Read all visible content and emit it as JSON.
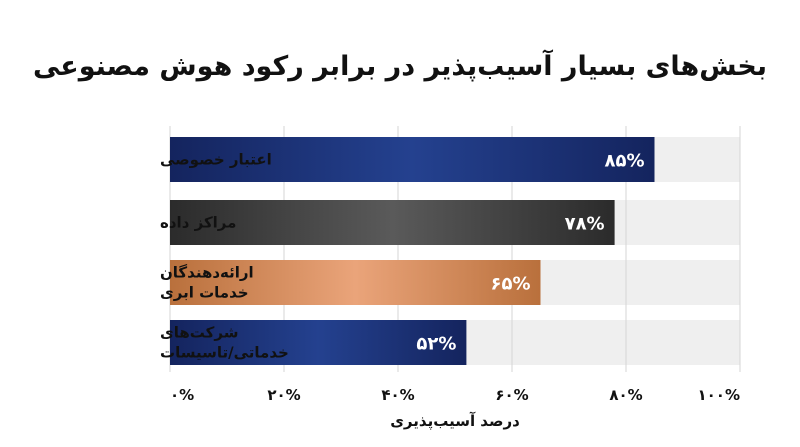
{
  "chart_data": {
    "type": "bar",
    "orientation": "horizontal",
    "title": "بخش‌های بسیار آسیب‌پذیر در برابر رکود هوش مصنوعی",
    "xlabel": "درصد آسیب‌پذیری",
    "ylabel": "",
    "xlim": [
      0,
      100
    ],
    "grid": true,
    "legend": "none",
    "categories": [
      [
        "اعتبار خصوصی"
      ],
      [
        "مراکز داده"
      ],
      [
        "ارائه‌دهندگان",
        "خدمات ابری"
      ],
      [
        "شرکت‌های",
        "خدماتی/تاسیسات"
      ]
    ],
    "values": [
      85,
      78,
      65,
      52
    ],
    "value_labels": [
      "۸۵%",
      "۷۸%",
      "۶۵%",
      "۵۲%"
    ],
    "x_ticks": [
      0,
      20,
      40,
      60,
      80,
      100
    ],
    "x_tick_labels": [
      "۰%",
      "۲۰%",
      "۴۰%",
      "۶۰%",
      "۸۰%",
      "۱۰۰%"
    ],
    "bar_colors": [
      [
        "#14245e",
        "#24418f",
        "#14245e"
      ],
      [
        "#2b2b2b",
        "#5a5a5a",
        "#2b2b2b"
      ],
      [
        "#b9703c",
        "#eaa47a",
        "#b9703c"
      ],
      [
        "#14245e",
        "#24418f",
        "#14245e"
      ]
    ],
    "track_color": "#efefef",
    "grid_color": "#d4d4d4"
  }
}
